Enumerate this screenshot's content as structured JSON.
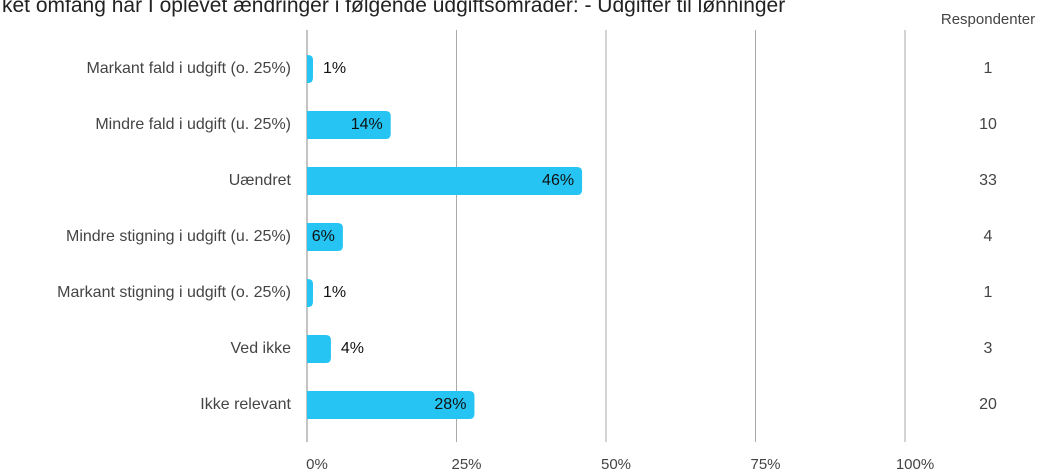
{
  "chart_data": {
    "type": "bar",
    "orientation": "horizontal",
    "title": "ket omfang har I oplevet ændringer i følgende udgiftsområder: - Udgifter til lønninger",
    "categories": [
      "Markant fald i udgift (o. 25%)",
      "Mindre fald i udgift (u. 25%)",
      "Uændret",
      "Mindre stigning i udgift (u. 25%)",
      "Markant stigning i udgift (o. 25%)",
      "Ved ikke",
      "Ikke relevant"
    ],
    "values": [
      1,
      14,
      46,
      6,
      1,
      4,
      28
    ],
    "value_labels": [
      "1%",
      "14%",
      "46%",
      "6%",
      "1%",
      "4%",
      "28%"
    ],
    "color": "#25c4f3",
    "respondents_header": "Respondenter",
    "respondents": [
      1,
      10,
      33,
      4,
      1,
      3,
      20
    ],
    "xlim": [
      0,
      100
    ],
    "xticks": [
      {
        "value": 0,
        "label": "0%"
      },
      {
        "value": 25,
        "label": "25%"
      },
      {
        "value": 50,
        "label": "50%"
      },
      {
        "value": 75,
        "label": "75%"
      },
      {
        "value": 100,
        "label": "100%"
      }
    ],
    "grid": true
  }
}
